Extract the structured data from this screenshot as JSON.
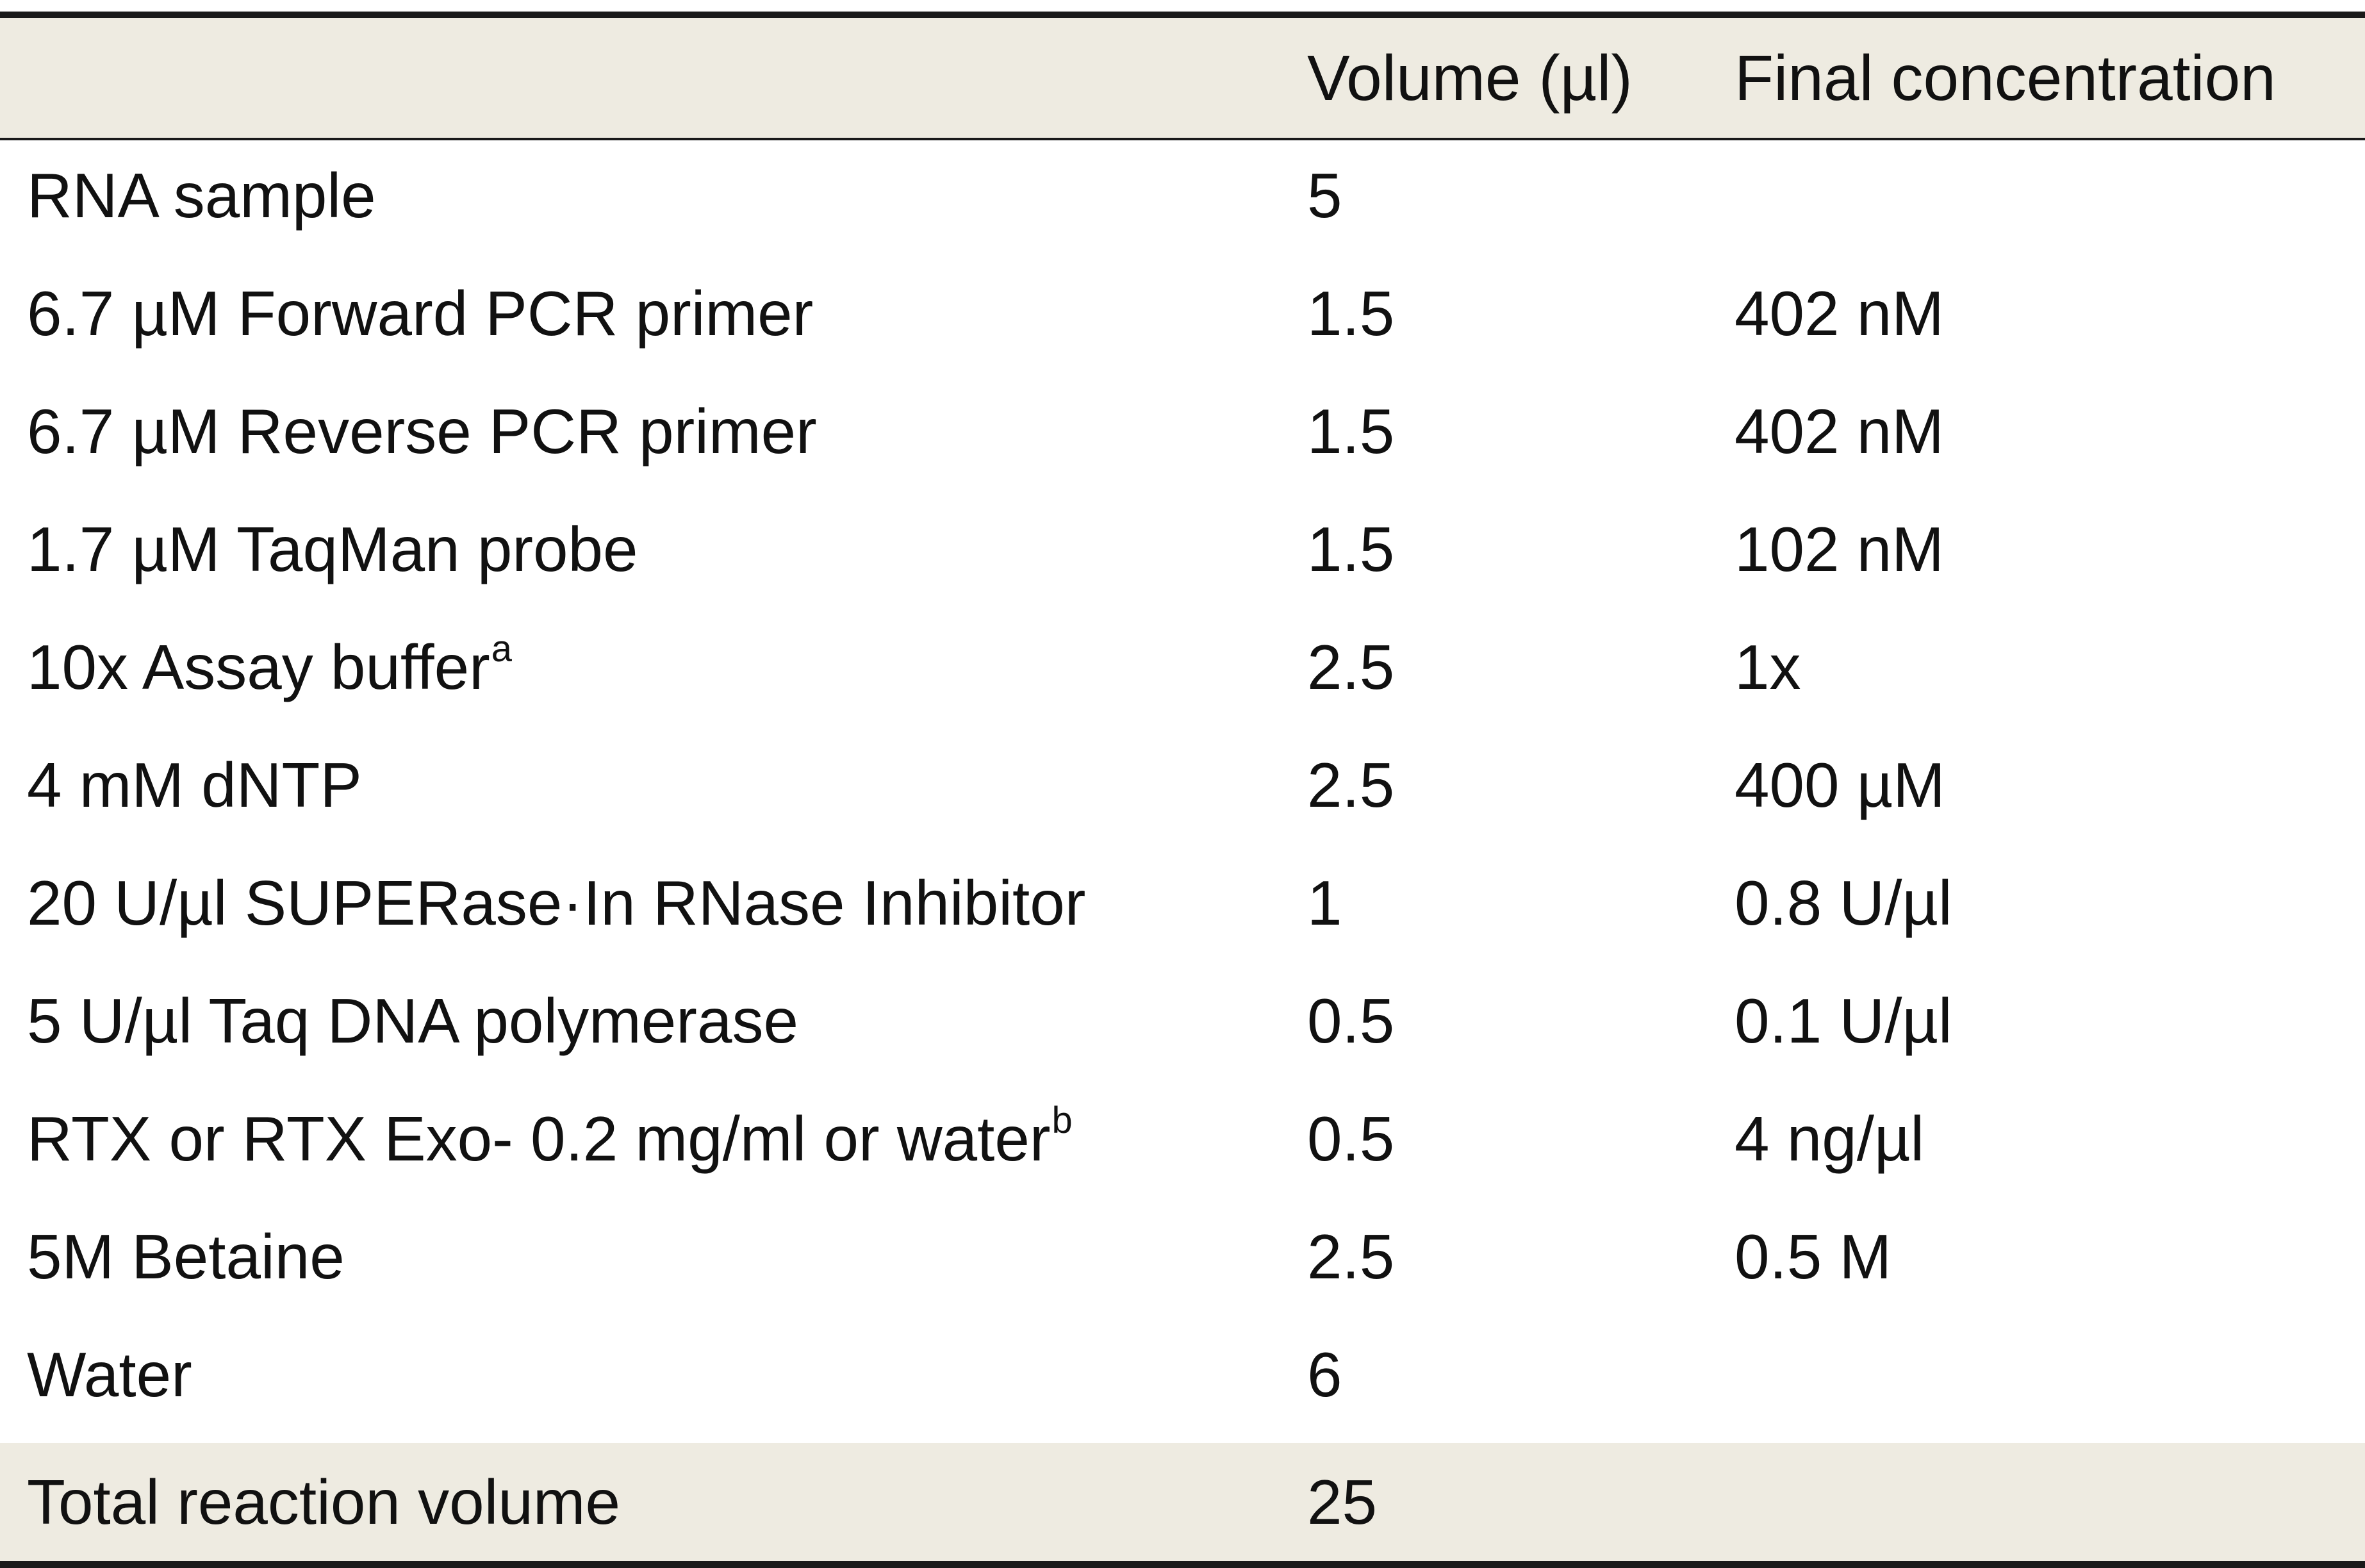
{
  "table": {
    "header": {
      "component": "",
      "volume": "Volume (µl)",
      "final_concentration": "Final concentration"
    },
    "rows": [
      {
        "component": "RNA sample",
        "sup": "",
        "volume": "5",
        "final_concentration": ""
      },
      {
        "component": "6.7 µM Forward PCR primer",
        "sup": "",
        "volume": "1.5",
        "final_concentration": "402 nM"
      },
      {
        "component": "6.7 µM Reverse PCR primer",
        "sup": "",
        "volume": "1.5",
        "final_concentration": "402 nM"
      },
      {
        "component": "1.7 µM TaqMan probe",
        "sup": "",
        "volume": "1.5",
        "final_concentration": "102 nM"
      },
      {
        "component": "10x Assay buffer",
        "sup": "a",
        "volume": "2.5",
        "final_concentration": "1x"
      },
      {
        "component": "4 mM dNTP",
        "sup": "",
        "volume": "2.5",
        "final_concentration": "400 µM"
      },
      {
        "component": "20 U/µl SUPERase·In RNase Inhibitor",
        "sup": "",
        "volume": "1",
        "final_concentration": "0.8 U/µl"
      },
      {
        "component": "5 U/µl Taq DNA polymerase",
        "sup": "",
        "volume": "0.5",
        "final_concentration": "0.1 U/µl"
      },
      {
        "component": "RTX or RTX Exo- 0.2 mg/ml or water",
        "sup": "b",
        "volume": "0.5",
        "final_concentration": "4 ng/µl"
      },
      {
        "component": "5M Betaine",
        "sup": "",
        "volume": "2.5",
        "final_concentration": "0.5 M"
      },
      {
        "component": "Water",
        "sup": "",
        "volume": "6",
        "final_concentration": ""
      }
    ],
    "total": {
      "component": "Total reaction volume",
      "volume": "25",
      "final_concentration": ""
    }
  },
  "colors": {
    "shaded_row": "#eeebe1",
    "rule": "#1a1a1a",
    "text": "#111111"
  }
}
